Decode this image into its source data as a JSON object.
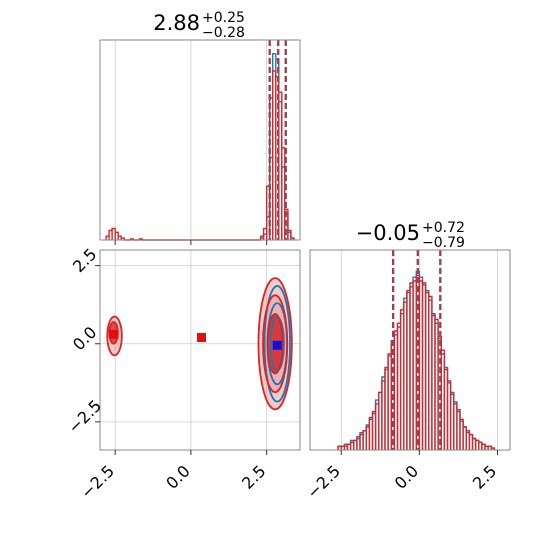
{
  "chart_data": {
    "type": "corner",
    "grid": true,
    "marker_colors": {
      "red": "#e01010",
      "blue": "#1010e0"
    },
    "panels": [
      {
        "id": "marginal-param-1",
        "type": "histogram",
        "title": {
          "main": "2.88",
          "upper": "+0.25",
          "lower": "−0.28"
        },
        "xlim": [
          -3.0,
          3.6
        ],
        "grid_x": [
          -2.5,
          0.0,
          2.5
        ],
        "quantile_lines": [
          2.6,
          2.88,
          3.13
        ],
        "series": [
          {
            "name": "",
            "color": "#1f77b4",
            "style": "step",
            "bin_width": 0.1,
            "bins": [
              [
                2.35,
                0.01
              ],
              [
                2.45,
                0.03
              ],
              [
                2.55,
                0.12
              ],
              [
                2.65,
                0.43
              ],
              [
                2.75,
                0.97
              ],
              [
                2.85,
                0.94
              ],
              [
                2.95,
                0.72
              ],
              [
                3.05,
                0.38
              ],
              [
                3.15,
                0.14
              ],
              [
                3.25,
                0.04
              ],
              [
                3.35,
                0.01
              ]
            ]
          },
          {
            "name": "",
            "color": "#d62728",
            "style": "step",
            "bin_width": 0.1,
            "bins": [
              [
                -2.75,
                0.02
              ],
              [
                -2.65,
                0.05
              ],
              [
                -2.55,
                0.06
              ],
              [
                -2.45,
                0.04
              ],
              [
                -2.35,
                0.02
              ],
              [
                -2.25,
                0.01
              ],
              [
                -1.95,
                0.005
              ],
              [
                -1.65,
                0.005
              ],
              [
                2.35,
                0.02
              ],
              [
                2.45,
                0.06
              ],
              [
                2.55,
                0.28
              ],
              [
                2.65,
                0.74
              ],
              [
                2.75,
                0.88
              ],
              [
                2.85,
                0.85
              ],
              [
                2.95,
                0.77
              ],
              [
                3.05,
                0.48
              ],
              [
                3.15,
                0.16
              ],
              [
                3.25,
                0.05
              ],
              [
                3.35,
                0.01
              ]
            ]
          }
        ]
      },
      {
        "id": "marginal-param-2",
        "type": "histogram",
        "title": {
          "main": "−0.05",
          "upper": "+0.72",
          "lower": "−0.79"
        },
        "xlim": [
          -3.5,
          2.9
        ],
        "grid_x": [
          -2.5,
          0.0,
          2.5
        ],
        "xtick_labels": [
          "−2.5",
          "0.0",
          "2.5"
        ],
        "quantile_lines": [
          -0.84,
          -0.05,
          0.67
        ],
        "series": [
          {
            "name": "",
            "color": "#1f77b4",
            "style": "step",
            "bin_width": 0.1,
            "bins": [
              [
                -2.55,
                0.02
              ],
              [
                -2.45,
                0.02
              ],
              [
                -2.35,
                0.03
              ],
              [
                -2.25,
                0.03
              ],
              [
                -2.15,
                0.05
              ],
              [
                -2.05,
                0.05
              ],
              [
                -1.95,
                0.07
              ],
              [
                -1.85,
                0.09
              ],
              [
                -1.75,
                0.1
              ],
              [
                -1.65,
                0.13
              ],
              [
                -1.55,
                0.17
              ],
              [
                -1.45,
                0.19
              ],
              [
                -1.35,
                0.26
              ],
              [
                -1.25,
                0.3
              ],
              [
                -1.15,
                0.38
              ],
              [
                -1.05,
                0.42
              ],
              [
                -0.95,
                0.49
              ],
              [
                -0.85,
                0.57
              ],
              [
                -0.75,
                0.6
              ],
              [
                -0.65,
                0.64
              ],
              [
                -0.55,
                0.71
              ],
              [
                -0.45,
                0.79
              ],
              [
                -0.35,
                0.82
              ],
              [
                -0.25,
                0.85
              ],
              [
                -0.15,
                0.9
              ],
              [
                -0.05,
                0.93
              ],
              [
                0.05,
                0.9
              ],
              [
                0.15,
                0.86
              ],
              [
                0.25,
                0.83
              ],
              [
                0.35,
                0.78
              ],
              [
                0.45,
                0.71
              ],
              [
                0.55,
                0.66
              ],
              [
                0.65,
                0.58
              ],
              [
                0.75,
                0.5
              ],
              [
                0.85,
                0.43
              ],
              [
                0.95,
                0.35
              ],
              [
                1.05,
                0.3
              ],
              [
                1.15,
                0.25
              ],
              [
                1.25,
                0.2
              ],
              [
                1.35,
                0.15
              ],
              [
                1.45,
                0.12
              ],
              [
                1.55,
                0.09
              ],
              [
                1.65,
                0.08
              ],
              [
                1.75,
                0.06
              ],
              [
                1.85,
                0.05
              ],
              [
                1.95,
                0.04
              ],
              [
                2.05,
                0.03
              ],
              [
                2.15,
                0.02
              ],
              [
                2.25,
                0.02
              ],
              [
                2.35,
                0.01
              ]
            ]
          },
          {
            "name": "",
            "color": "#d62728",
            "style": "step",
            "bin_width": 0.1,
            "bins": [
              [
                -2.55,
                0.02
              ],
              [
                -2.45,
                0.02
              ],
              [
                -2.35,
                0.02
              ],
              [
                -2.25,
                0.03
              ],
              [
                -2.15,
                0.04
              ],
              [
                -2.05,
                0.05
              ],
              [
                -1.95,
                0.06
              ],
              [
                -1.85,
                0.08
              ],
              [
                -1.75,
                0.1
              ],
              [
                -1.65,
                0.12
              ],
              [
                -1.55,
                0.16
              ],
              [
                -1.45,
                0.2
              ],
              [
                -1.35,
                0.24
              ],
              [
                -1.25,
                0.3
              ],
              [
                -1.15,
                0.36
              ],
              [
                -1.05,
                0.43
              ],
              [
                -0.95,
                0.5
              ],
              [
                -0.85,
                0.55
              ],
              [
                -0.75,
                0.62
              ],
              [
                -0.65,
                0.66
              ],
              [
                -0.55,
                0.73
              ],
              [
                -0.45,
                0.77
              ],
              [
                -0.35,
                0.83
              ],
              [
                -0.25,
                0.87
              ],
              [
                -0.15,
                0.88
              ],
              [
                -0.05,
                0.91
              ],
              [
                0.05,
                0.88
              ],
              [
                0.15,
                0.87
              ],
              [
                0.25,
                0.82
              ],
              [
                0.35,
                0.8
              ],
              [
                0.45,
                0.7
              ],
              [
                0.55,
                0.68
              ],
              [
                0.65,
                0.59
              ],
              [
                0.75,
                0.52
              ],
              [
                0.85,
                0.42
              ],
              [
                0.95,
                0.36
              ],
              [
                1.05,
                0.29
              ],
              [
                1.15,
                0.24
              ],
              [
                1.25,
                0.21
              ],
              [
                1.35,
                0.16
              ],
              [
                1.45,
                0.12
              ],
              [
                1.55,
                0.1
              ],
              [
                1.65,
                0.08
              ],
              [
                1.75,
                0.06
              ],
              [
                1.85,
                0.05
              ],
              [
                1.95,
                0.04
              ],
              [
                2.05,
                0.03
              ],
              [
                2.15,
                0.02
              ],
              [
                2.25,
                0.02
              ],
              [
                2.35,
                0.01
              ]
            ]
          }
        ]
      },
      {
        "id": "joint-param-1-2",
        "type": "contour",
        "xlim": [
          -3.0,
          3.6
        ],
        "ylim": [
          -3.4,
          3.0
        ],
        "grid_x": [
          -2.5,
          0.0,
          2.5
        ],
        "grid_y": [
          -2.5,
          0.0,
          2.5
        ],
        "xtick_labels": [
          "−2.5",
          "0.0",
          "2.5"
        ],
        "ytick_labels": [
          "−2.5",
          "0.0",
          "2.5"
        ],
        "series": [
          {
            "name": "",
            "color": "#1f77b4",
            "contours": [
              {
                "cx": 2.85,
                "cy": 0.0,
                "rx": 0.22,
                "ry": 0.85
              },
              {
                "cx": 2.85,
                "cy": 0.0,
                "rx": 0.32,
                "ry": 1.3
              },
              {
                "cx": 2.85,
                "cy": 0.0,
                "rx": 0.42,
                "ry": 1.85
              }
            ]
          },
          {
            "name": "",
            "color": "#d62728",
            "contours": [
              {
                "cx": 2.78,
                "cy": 0.0,
                "rx": 0.25,
                "ry": 0.95
              },
              {
                "cx": 2.78,
                "cy": 0.0,
                "rx": 0.4,
                "ry": 1.55
              },
              {
                "cx": 2.78,
                "cy": 0.0,
                "rx": 0.55,
                "ry": 2.1
              },
              {
                "cx": -2.55,
                "cy": 0.35,
                "rx": 0.14,
                "ry": 0.35
              },
              {
                "cx": -2.52,
                "cy": 0.25,
                "rx": 0.24,
                "ry": 0.62
              }
            ]
          }
        ],
        "markers": [
          {
            "x": -2.55,
            "y": 0.3,
            "color": "red"
          },
          {
            "x": 0.35,
            "y": 0.2,
            "color": "red"
          },
          {
            "x": 2.85,
            "y": -0.05,
            "color": "blue"
          }
        ]
      }
    ]
  }
}
